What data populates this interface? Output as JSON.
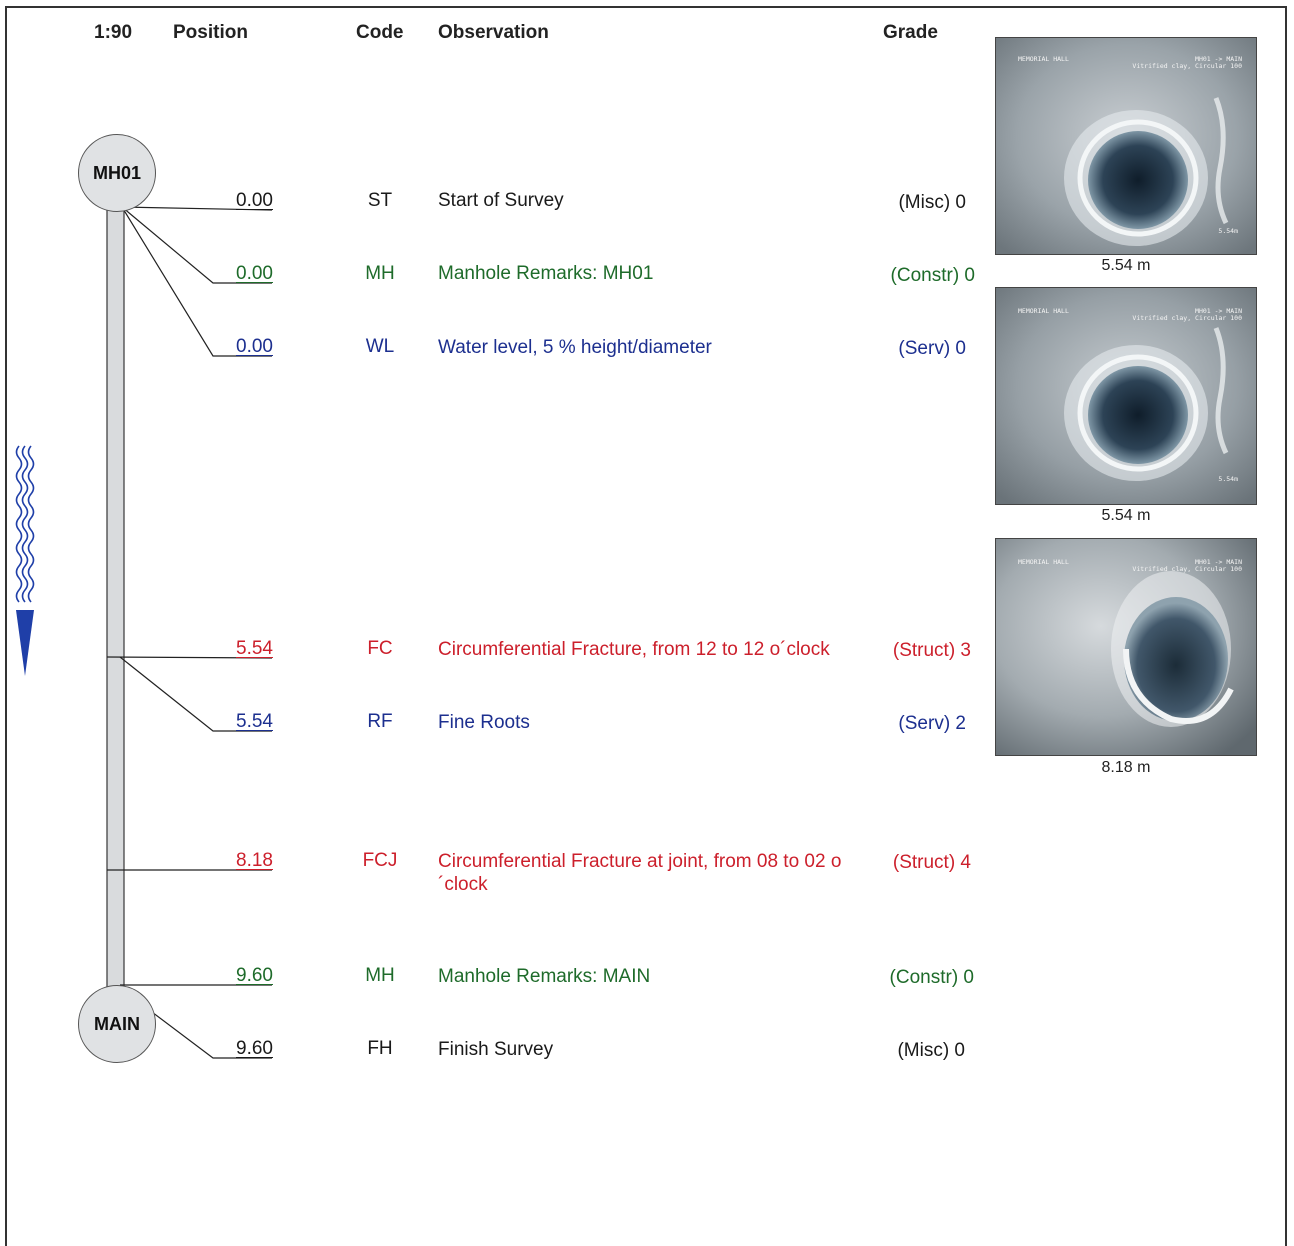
{
  "header": {
    "scale": "1:90",
    "position": "Position",
    "code": "Code",
    "observation": "Observation",
    "grade": "Grade"
  },
  "nodes": {
    "start": "MH01",
    "end": "MAIN"
  },
  "rows": [
    {
      "position": "0.00",
      "code": "ST",
      "observation": "Start of Survey",
      "grade": "(Misc) 0",
      "color": "#1a1a1a"
    },
    {
      "position": "0.00",
      "code": "MH",
      "observation": "Manhole Remarks: MH01",
      "grade": "(Constr) 0",
      "color": "#1e6b2a"
    },
    {
      "position": "0.00",
      "code": "WL",
      "observation": "Water level, 5 % height/diameter",
      "grade": "(Serv) 0",
      "color": "#1c2f8f"
    },
    {
      "position": "5.54",
      "code": "FC",
      "observation": "Circumferential Fracture, from 12 to 12 o´clock",
      "grade": "(Struct) 3",
      "color": "#cc1f2b"
    },
    {
      "position": "5.54",
      "code": "RF",
      "observation": "Fine Roots",
      "grade": "(Serv) 2",
      "color": "#1c2f8f"
    },
    {
      "position": "8.18",
      "code": "FCJ",
      "observation": "Circumferential Fracture at joint, from 08 to 02 o´clock",
      "grade": "(Struct) 4",
      "color": "#cc1f2b"
    },
    {
      "position": "9.60",
      "code": "MH",
      "observation": "Manhole Remarks: MAIN",
      "grade": "(Constr) 0",
      "color": "#1e6b2a"
    },
    {
      "position": "9.60",
      "code": "FH",
      "observation": "Finish Survey",
      "grade": "(Misc) 0",
      "color": "#1a1a1a"
    }
  ],
  "photos": [
    {
      "caption": "5.54 m",
      "overlay_left": "MEMORIAL HALL",
      "overlay_right_1": "MH01 -> MAIN",
      "overlay_right_2": "Vitrified clay, Circular 100",
      "stamp": "5.54m"
    },
    {
      "caption": "5.54 m",
      "overlay_left": "MEMORIAL HALL",
      "overlay_right_1": "MH01 -> MAIN",
      "overlay_right_2": "Vitrified clay, Circular 100",
      "stamp": "5.54m"
    },
    {
      "caption": "8.18 m",
      "overlay_left": "MEMORIAL HALL",
      "overlay_right_1": "MH01 -> MAIN",
      "overlay_right_2": "Vitrified clay, Circular 100",
      "stamp": ""
    }
  ],
  "colors": {
    "misc": "#1a1a1a",
    "construction": "#1e6b2a",
    "service": "#1c2f8f",
    "structural": "#cc1f2b",
    "flow_arrow": "#1f3fa8"
  },
  "icons": {
    "flow": "flow-direction-arrow-icon"
  }
}
